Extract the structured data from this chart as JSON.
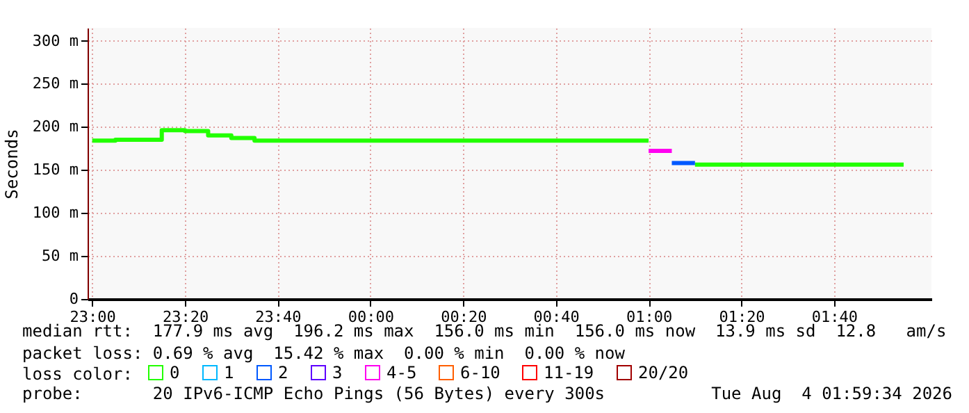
{
  "chart_data": {
    "type": "step",
    "ylabel": "Seconds",
    "legend_title": "loss color:",
    "legend": "bottom",
    "grid": true,
    "line_style": "solid",
    "marker": "none",
    "x": [
      "2026-08-03T23:00",
      "2026-08-03T23:05",
      "2026-08-03T23:10",
      "2026-08-03T23:15",
      "2026-08-03T23:20",
      "2026-08-03T23:25",
      "2026-08-03T23:30",
      "2026-08-03T23:35",
      "2026-08-03T23:40",
      "2026-08-03T23:45",
      "2026-08-03T23:50",
      "2026-08-03T23:55",
      "2026-08-04T00:00",
      "2026-08-04T00:05",
      "2026-08-04T00:10",
      "2026-08-04T00:15",
      "2026-08-04T00:20",
      "2026-08-04T00:25",
      "2026-08-04T00:30",
      "2026-08-04T00:35",
      "2026-08-04T00:40",
      "2026-08-04T00:45",
      "2026-08-04T00:50",
      "2026-08-04T00:55",
      "2026-08-04T01:00",
      "2026-08-04T01:05",
      "2026-08-04T01:10",
      "2026-08-04T01:15",
      "2026-08-04T01:20",
      "2026-08-04T01:25",
      "2026-08-04T01:30",
      "2026-08-04T01:35",
      "2026-08-04T01:40",
      "2026-08-04T01:45",
      "2026-08-04T01:50",
      "2026-08-04T01:55"
    ],
    "series": [
      {
        "name": "0",
        "color": "#22ff00",
        "values": [
          184,
          184,
          185,
          185,
          196,
          195,
          190,
          187,
          184,
          184,
          184,
          184,
          184,
          184,
          184,
          184,
          184,
          184,
          184,
          184,
          184,
          184,
          184,
          184,
          184,
          null,
          156,
          156,
          156,
          156,
          156,
          156,
          156,
          156,
          156,
          156
        ]
      },
      {
        "name": "1",
        "color": "#00b8ff",
        "values": [
          null,
          null,
          null,
          null,
          null,
          null,
          null,
          null,
          null,
          null,
          null,
          null,
          null,
          null,
          null,
          null,
          null,
          null,
          null,
          null,
          null,
          null,
          null,
          null,
          null,
          null,
          null,
          null,
          null,
          null,
          null,
          null,
          null,
          null,
          null,
          null
        ]
      },
      {
        "name": "2",
        "color": "#0059ff",
        "values": [
          null,
          null,
          null,
          null,
          null,
          null,
          null,
          null,
          null,
          null,
          null,
          null,
          null,
          null,
          null,
          null,
          null,
          null,
          null,
          null,
          null,
          null,
          null,
          null,
          null,
          158,
          158,
          null,
          null,
          null,
          null,
          null,
          null,
          null,
          null,
          null
        ]
      },
      {
        "name": "3",
        "color": "#5e00ff",
        "values": [
          null,
          null,
          null,
          null,
          null,
          null,
          null,
          null,
          null,
          null,
          null,
          null,
          null,
          null,
          null,
          null,
          null,
          null,
          null,
          null,
          null,
          null,
          null,
          null,
          null,
          null,
          null,
          null,
          null,
          null,
          null,
          null,
          null,
          null,
          null,
          null
        ]
      },
      {
        "name": "4-5",
        "color": "#ff00f0",
        "values": [
          null,
          null,
          null,
          null,
          null,
          null,
          null,
          null,
          null,
          null,
          null,
          null,
          null,
          null,
          null,
          null,
          null,
          null,
          null,
          null,
          null,
          null,
          null,
          null,
          172,
          172,
          null,
          null,
          null,
          null,
          null,
          null,
          null,
          null,
          null,
          null
        ]
      },
      {
        "name": "6-10",
        "color": "#ff5e00",
        "values": [
          null,
          null,
          null,
          null,
          null,
          null,
          null,
          null,
          null,
          null,
          null,
          null,
          null,
          null,
          null,
          null,
          null,
          null,
          null,
          null,
          null,
          null,
          null,
          null,
          null,
          null,
          null,
          null,
          null,
          null,
          null,
          null,
          null,
          null,
          null,
          null
        ]
      },
      {
        "name": "11-19",
        "color": "#ff0000",
        "values": [
          null,
          null,
          null,
          null,
          null,
          null,
          null,
          null,
          null,
          null,
          null,
          null,
          null,
          null,
          null,
          null,
          null,
          null,
          null,
          null,
          null,
          null,
          null,
          null,
          null,
          null,
          null,
          null,
          null,
          null,
          null,
          null,
          null,
          null,
          null,
          null
        ]
      },
      {
        "name": "20/20",
        "color": "#a10000",
        "values": [
          null,
          null,
          null,
          null,
          null,
          null,
          null,
          null,
          null,
          null,
          null,
          null,
          null,
          null,
          null,
          null,
          null,
          null,
          null,
          null,
          null,
          null,
          null,
          null,
          null,
          null,
          null,
          null,
          null,
          null,
          null,
          null,
          null,
          null,
          null,
          null
        ]
      }
    ],
    "xlim": [
      "2026-08-03T22:59",
      "2026-08-04T02:01"
    ],
    "xticks": [
      {
        "value": "2026-08-03T23:00",
        "label": "23:00"
      },
      {
        "value": "2026-08-03T23:20",
        "label": "23:20"
      },
      {
        "value": "2026-08-03T23:40",
        "label": "23:40"
      },
      {
        "value": "2026-08-04T00:00",
        "label": "00:00"
      },
      {
        "value": "2026-08-04T00:20",
        "label": "00:20"
      },
      {
        "value": "2026-08-04T00:40",
        "label": "00:40"
      },
      {
        "value": "2026-08-04T01:00",
        "label": "01:00"
      },
      {
        "value": "2026-08-04T01:20",
        "label": "01:20"
      },
      {
        "value": "2026-08-04T01:40",
        "label": "01:40"
      }
    ],
    "ylim": [
      0,
      315
    ],
    "yticks": [
      {
        "value": 0,
        "label": "0"
      },
      {
        "value": 50,
        "label": "50 m"
      },
      {
        "value": 100,
        "label": "100 m"
      },
      {
        "value": 150,
        "label": "150 m"
      },
      {
        "value": 200,
        "label": "200 m"
      },
      {
        "value": 250,
        "label": "250 m"
      },
      {
        "value": 300,
        "label": "300 m"
      }
    ],
    "annotations": [
      "median rtt:  177.9 ms avg  196.2 ms max  156.0 ms min  156.0 ms now  13.9 ms sd  12.8   am/s",
      "packet loss: 0.69 % avg  15.42 % max  0.00 % min  0.00 % now",
      "probe:       20 IPv6-ICMP Echo Pings (56 Bytes) every 300s",
      "Tue Aug  4 01:59:34 2026"
    ]
  }
}
